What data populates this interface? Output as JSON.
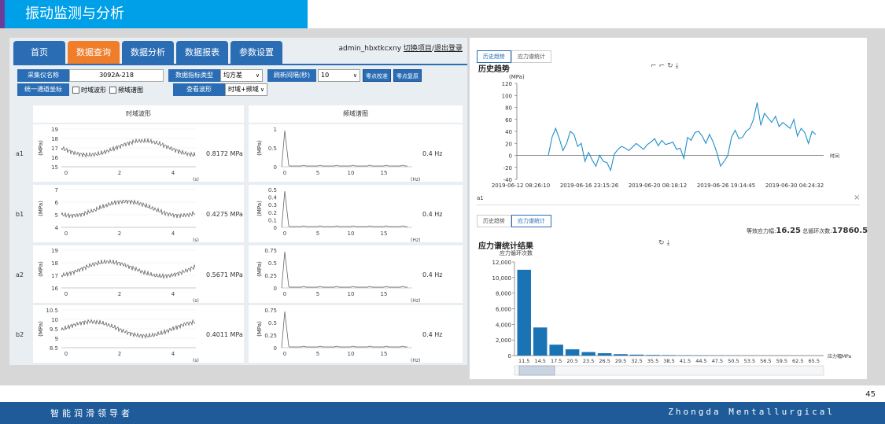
{
  "slide": {
    "title": "振动监测与分析",
    "page_number": "45",
    "footer_left": "智能润滑领导者",
    "footer_right": "Zhongda Mentallurgical"
  },
  "nav": {
    "tabs": [
      {
        "label": "首页",
        "active": false
      },
      {
        "label": "数据查询",
        "active": true
      },
      {
        "label": "数据分析",
        "active": false
      },
      {
        "label": "数据报表",
        "active": false
      },
      {
        "label": "参数设置",
        "active": false
      }
    ],
    "user": "admin_hbxtkcxny",
    "switch_link": "切换项目",
    "separator": "/",
    "logout_link": "退出登录"
  },
  "controls": {
    "device_label": "采集仪名称",
    "device_value": "3092A-218",
    "metric_type_label": "数据指标类型",
    "metric_type_value": "均方差",
    "refresh_label": "刷新间隔(秒)",
    "refresh_value": "10",
    "zero_calib_btn": "零点校准",
    "zero_restore_btn": "零点复原",
    "unify_coord_btn": "统一通道坐标",
    "time_wave_chk": "时域波形",
    "freq_spec_chk": "频域谱图",
    "view_wave_label": "查看波形",
    "view_wave_value": "时域+频域"
  },
  "grid": {
    "time_header": "时域波形",
    "freq_header": "频域谱图",
    "time_unit": "(s)",
    "freq_unit": "(Hz)",
    "y_unit": "(MPa)",
    "channels": [
      {
        "name": "a1",
        "rms": "0.8172 MPa",
        "freq": "0.4 Hz",
        "t_ticks": [
          "19",
          "18",
          "17",
          "16",
          "15"
        ],
        "f_ticks": [
          "1",
          "0.5",
          "0"
        ]
      },
      {
        "name": "b1",
        "rms": "0.4275 MPa",
        "freq": "0.4 Hz",
        "t_ticks": [
          "7",
          "6",
          "5",
          "4"
        ],
        "f_ticks": [
          "0.5",
          "0.4",
          "0.3",
          "0.2",
          "0.1",
          "0"
        ]
      },
      {
        "name": "a2",
        "rms": "0.5671 MPa",
        "freq": "0.4 Hz",
        "t_ticks": [
          "19",
          "18",
          "17",
          "16"
        ],
        "f_ticks": [
          "0.75",
          "0.5",
          "0.25",
          "0"
        ]
      },
      {
        "name": "b2",
        "rms": "0.4011 MPa",
        "freq": "0.4 Hz",
        "t_ticks": [
          "10.5",
          "10",
          "9.5",
          "9",
          "8.5"
        ],
        "f_ticks": [
          "0.75",
          "0.5",
          "0.25",
          "0"
        ]
      }
    ],
    "t_xticks": [
      "0",
      "2",
      "4"
    ],
    "f_xticks": [
      "0",
      "5",
      "10",
      "15"
    ]
  },
  "history": {
    "tabs": [
      "历史趋势",
      "应力谱统计"
    ],
    "active_tab": 0,
    "title": "历史趋势",
    "y_unit": "(MPa)",
    "x_label": "时间",
    "channel": "a1",
    "close_icon": "×"
  },
  "stress": {
    "tabs": [
      "历史趋势",
      "应力谱统计"
    ],
    "active_tab": 1,
    "title": "应力谱统计结果",
    "equiv_label": "等效应力幅:",
    "equiv_value": "16.25",
    "cycles_label": "总循环次数:",
    "cycles_value": "17860.5",
    "y_label": "应力循环次数",
    "x_label": "应力幅MPa"
  },
  "chart_data": [
    {
      "type": "line",
      "title": "历史趋势",
      "ylabel": "(MPa)",
      "xlabel": "时间",
      "ylim": [
        -40,
        120
      ],
      "yticks": [
        120,
        100,
        80,
        60,
        40,
        20,
        0,
        -20,
        -40
      ],
      "x_ticks": [
        "2019-06-12 08:26:10",
        "2019-06-16 23:15:26",
        "2019-06-20 08:18:12",
        "2019-06-26 19:14:45",
        "2019-06-30 04:24:32"
      ],
      "series": [
        {
          "values": [
            0,
            30,
            45,
            28,
            8,
            20,
            40,
            35,
            15,
            20,
            -10,
            5,
            -8,
            -18,
            0,
            -10,
            -12,
            -25,
            2,
            10,
            15,
            12,
            8,
            14,
            20,
            15,
            10,
            18,
            22,
            28,
            16,
            25,
            18,
            20,
            22,
            10,
            12,
            -5,
            30,
            25,
            38,
            40,
            32,
            20,
            35,
            22,
            5,
            -18,
            -10,
            0,
            30,
            42,
            28,
            30,
            40,
            45,
            60,
            88,
            50,
            70,
            62,
            55,
            65,
            48,
            55,
            50,
            45,
            60,
            32,
            45,
            38,
            20,
            40,
            35
          ]
        }
      ]
    },
    {
      "type": "bar",
      "title": "应力谱统计结果",
      "ylabel": "应力循环次数",
      "xlabel": "应力幅MPa",
      "ylim": [
        0,
        12000
      ],
      "yticks": [
        "12,000",
        "10,000",
        "8,000",
        "6,000",
        "4,000",
        "2,000",
        "0"
      ],
      "categories": [
        "11.5",
        "14.5",
        "17.5",
        "20.5",
        "23.5",
        "26.5",
        "29.5",
        "32.5",
        "35.5",
        "38.5",
        "41.5",
        "44.5",
        "47.5",
        "50.5",
        "53.5",
        "56.5",
        "59.5",
        "62.5",
        "65.5"
      ],
      "values": [
        11000,
        3600,
        1400,
        800,
        450,
        300,
        180,
        120,
        80,
        60,
        40,
        30,
        20,
        15,
        10,
        8,
        6,
        4,
        3
      ]
    }
  ]
}
